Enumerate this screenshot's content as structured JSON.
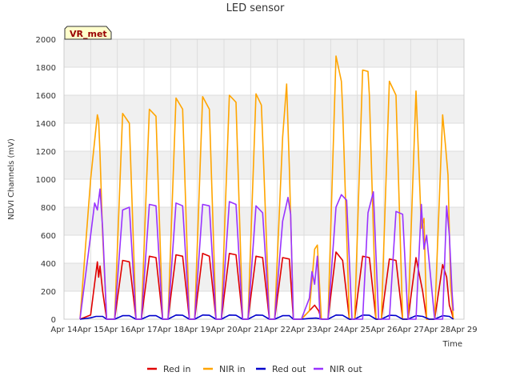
{
  "chart_data": {
    "type": "line",
    "title": "LED sensor",
    "xlabel": "Time",
    "ylabel": "NDVI Channels (mV)",
    "site_tag": "VR_met",
    "ylim": [
      0,
      2000
    ],
    "yticks": [
      0,
      200,
      400,
      600,
      800,
      1000,
      1200,
      1400,
      1600,
      1800,
      2000
    ],
    "xlim": [
      14,
      29
    ],
    "xtick_labels": [
      "Apr 14",
      "Apr 15",
      "Apr 16",
      "Apr 17",
      "Apr 18",
      "Apr 19",
      "Apr 20",
      "Apr 21",
      "Apr 22",
      "Apr 23",
      "Apr 24",
      "Apr 25",
      "Apr 26",
      "Apr 27",
      "Apr 28",
      "Apr 29"
    ],
    "grid": true,
    "legend_position": "bottom",
    "x_units": "day of April (daily peaks near midday)",
    "series": [
      {
        "name": "Red in",
        "color": "#e00000",
        "x": [
          14.6,
          15.0,
          15.25,
          15.3,
          15.35,
          15.45,
          15.6,
          15.9,
          16.2,
          16.45,
          16.7,
          16.9,
          17.2,
          17.45,
          17.7,
          17.9,
          18.2,
          18.45,
          18.7,
          18.9,
          19.2,
          19.45,
          19.7,
          19.9,
          20.2,
          20.45,
          20.7,
          20.9,
          21.2,
          21.45,
          21.7,
          21.9,
          22.2,
          22.45,
          22.6,
          22.9,
          23.2,
          23.4,
          23.55,
          23.65,
          23.9,
          24.2,
          24.45,
          24.7,
          24.9,
          25.2,
          25.45,
          25.7,
          25.9,
          26.2,
          26.45,
          26.7,
          26.9,
          27.2,
          27.45,
          27.6,
          27.9,
          28.2,
          28.35,
          28.45,
          28.55,
          28.6
        ],
        "y": [
          0,
          30,
          410,
          300,
          380,
          200,
          0,
          0,
          420,
          410,
          0,
          0,
          450,
          440,
          0,
          0,
          460,
          450,
          0,
          0,
          470,
          450,
          0,
          0,
          470,
          460,
          0,
          0,
          450,
          440,
          0,
          0,
          440,
          430,
          0,
          0,
          60,
          100,
          60,
          0,
          0,
          480,
          420,
          0,
          0,
          450,
          440,
          0,
          0,
          430,
          420,
          0,
          0,
          440,
          200,
          0,
          0,
          390,
          300,
          100,
          40,
          0
        ]
      },
      {
        "name": "NIR in",
        "color": "#ffa500",
        "x": [
          14.6,
          15.0,
          15.25,
          15.3,
          15.35,
          15.45,
          15.6,
          15.9,
          16.2,
          16.45,
          16.7,
          16.9,
          17.2,
          17.45,
          17.7,
          17.9,
          18.2,
          18.45,
          18.7,
          18.9,
          19.2,
          19.45,
          19.7,
          19.9,
          20.2,
          20.45,
          20.7,
          20.9,
          21.2,
          21.4,
          21.45,
          21.7,
          21.9,
          22.2,
          22.35,
          22.45,
          22.6,
          22.9,
          23.2,
          23.4,
          23.5,
          23.65,
          23.9,
          24.2,
          24.4,
          24.45,
          24.7,
          24.9,
          25.2,
          25.4,
          25.45,
          25.7,
          25.9,
          26.2,
          26.45,
          26.7,
          26.9,
          27.2,
          27.4,
          27.5,
          27.6,
          27.9,
          28.2,
          28.3,
          28.4,
          28.5,
          28.6
        ],
        "y": [
          0,
          1000,
          1460,
          1420,
          1180,
          600,
          0,
          0,
          1470,
          1400,
          0,
          0,
          1500,
          1450,
          0,
          0,
          1580,
          1500,
          0,
          0,
          1590,
          1500,
          0,
          0,
          1600,
          1550,
          0,
          0,
          1610,
          1530,
          1300,
          0,
          0,
          1300,
          1680,
          1080,
          0,
          0,
          60,
          500,
          530,
          0,
          0,
          1880,
          1700,
          1500,
          0,
          0,
          1780,
          1770,
          1600,
          0,
          0,
          1700,
          1600,
          0,
          0,
          1630,
          650,
          720,
          0,
          0,
          1460,
          1250,
          1030,
          240,
          0
        ]
      },
      {
        "name": "Red out",
        "color": "#0000cc",
        "x": [
          14.6,
          15.0,
          15.2,
          15.45,
          15.6,
          15.9,
          16.2,
          16.45,
          16.7,
          16.9,
          17.2,
          17.45,
          17.7,
          17.9,
          18.2,
          18.45,
          18.7,
          18.9,
          19.2,
          19.45,
          19.7,
          19.9,
          20.2,
          20.45,
          20.7,
          20.9,
          21.2,
          21.45,
          21.7,
          21.9,
          22.2,
          22.45,
          22.6,
          22.9,
          23.2,
          23.45,
          23.7,
          23.9,
          24.2,
          24.45,
          24.7,
          24.9,
          25.2,
          25.45,
          25.7,
          25.9,
          26.2,
          26.45,
          26.7,
          26.9,
          27.2,
          27.45,
          27.7,
          27.9,
          28.2,
          28.45,
          28.6
        ],
        "y": [
          0,
          10,
          20,
          20,
          0,
          0,
          25,
          25,
          0,
          0,
          25,
          25,
          0,
          0,
          30,
          28,
          0,
          0,
          30,
          28,
          0,
          0,
          30,
          28,
          0,
          0,
          30,
          28,
          0,
          0,
          25,
          25,
          0,
          0,
          5,
          8,
          0,
          0,
          30,
          28,
          0,
          0,
          30,
          28,
          0,
          0,
          28,
          26,
          0,
          0,
          25,
          20,
          0,
          0,
          25,
          20,
          0
        ]
      },
      {
        "name": "NIR out",
        "color": "#9933ff",
        "x": [
          14.6,
          15.0,
          15.15,
          15.25,
          15.35,
          15.45,
          15.6,
          15.9,
          16.2,
          16.45,
          16.7,
          16.9,
          17.2,
          17.45,
          17.7,
          17.9,
          18.2,
          18.45,
          18.7,
          18.9,
          19.2,
          19.45,
          19.7,
          19.9,
          20.2,
          20.45,
          20.7,
          20.9,
          21.2,
          21.45,
          21.7,
          21.9,
          22.2,
          22.4,
          22.5,
          22.6,
          22.9,
          23.2,
          23.3,
          23.4,
          23.5,
          23.6,
          23.9,
          24.2,
          24.4,
          24.6,
          24.8,
          25.2,
          25.4,
          25.6,
          25.8,
          26.2,
          26.45,
          26.7,
          26.9,
          27.2,
          27.4,
          27.5,
          27.6,
          27.9,
          28.2,
          28.35,
          28.45,
          28.55,
          28.6
        ],
        "y": [
          0,
          600,
          830,
          780,
          930,
          650,
          0,
          0,
          780,
          800,
          0,
          0,
          820,
          810,
          0,
          0,
          830,
          810,
          0,
          0,
          820,
          810,
          0,
          0,
          840,
          820,
          0,
          0,
          810,
          760,
          0,
          0,
          700,
          870,
          750,
          0,
          0,
          150,
          340,
          250,
          450,
          0,
          0,
          800,
          890,
          850,
          0,
          0,
          760,
          910,
          0,
          0,
          770,
          750,
          0,
          0,
          820,
          500,
          600,
          0,
          0,
          810,
          600,
          200,
          60
        ]
      }
    ]
  }
}
